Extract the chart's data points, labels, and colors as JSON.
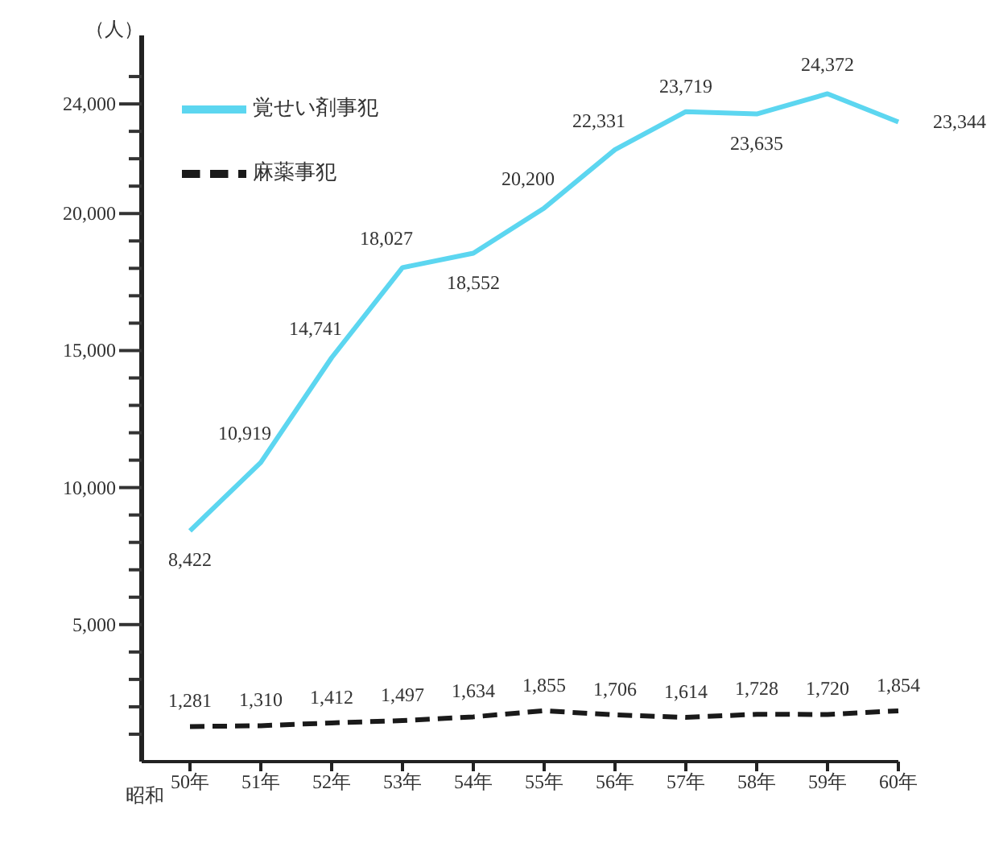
{
  "chart_data": {
    "type": "line",
    "ylabel": "（人）",
    "xlabel": "昭和",
    "categories": [
      "50年",
      "51年",
      "52年",
      "53年",
      "54年",
      "55年",
      "56年",
      "57年",
      "58年",
      "59年",
      "60年"
    ],
    "series": [
      {
        "name": "覚せい剤事犯",
        "color": "#5cd6f0",
        "line_style": "solid",
        "values": [
          8422,
          10919,
          14741,
          18027,
          18552,
          20200,
          22331,
          23719,
          23635,
          24372,
          23344
        ],
        "value_labels": [
          "8,422",
          "10,919",
          "14,741",
          "18,027",
          "18,552",
          "20,200",
          "22,331",
          "23,719",
          "23,635",
          "24,372",
          "23,344"
        ]
      },
      {
        "name": "麻薬事犯",
        "color": "#1a1a1a",
        "line_style": "dashed",
        "values": [
          1281,
          1310,
          1412,
          1497,
          1634,
          1855,
          1706,
          1614,
          1728,
          1720,
          1854
        ],
        "value_labels": [
          "1,281",
          "1,310",
          "1,412",
          "1,497",
          "1,634",
          "1,855",
          "1,706",
          "1,614",
          "1,728",
          "1,720",
          "1,854"
        ]
      }
    ],
    "ylim": [
      0,
      26500
    ],
    "yticks": [
      {
        "value": 1000,
        "label": null
      },
      {
        "value": 2000,
        "label": null
      },
      {
        "value": 3000,
        "label": null
      },
      {
        "value": 4000,
        "label": null
      },
      {
        "value": 5000,
        "label": "5,000"
      },
      {
        "value": 6000,
        "label": null
      },
      {
        "value": 7000,
        "label": null
      },
      {
        "value": 8000,
        "label": null
      },
      {
        "value": 9000,
        "label": null
      },
      {
        "value": 10000,
        "label": "10,000"
      },
      {
        "value": 11000,
        "label": null
      },
      {
        "value": 12000,
        "label": null
      },
      {
        "value": 13000,
        "label": null
      },
      {
        "value": 14000,
        "label": null
      },
      {
        "value": 15000,
        "label": "15,000"
      },
      {
        "value": 16000,
        "label": null
      },
      {
        "value": 17000,
        "label": null
      },
      {
        "value": 18000,
        "label": null
      },
      {
        "value": 19000,
        "label": null
      },
      {
        "value": 20000,
        "label": "20,000"
      },
      {
        "value": 21000,
        "label": null
      },
      {
        "value": 22000,
        "label": null
      },
      {
        "value": 23000,
        "label": null
      },
      {
        "value": 24000,
        "label": "24,000"
      },
      {
        "value": 25000,
        "label": null
      }
    ],
    "legend": "top left"
  }
}
